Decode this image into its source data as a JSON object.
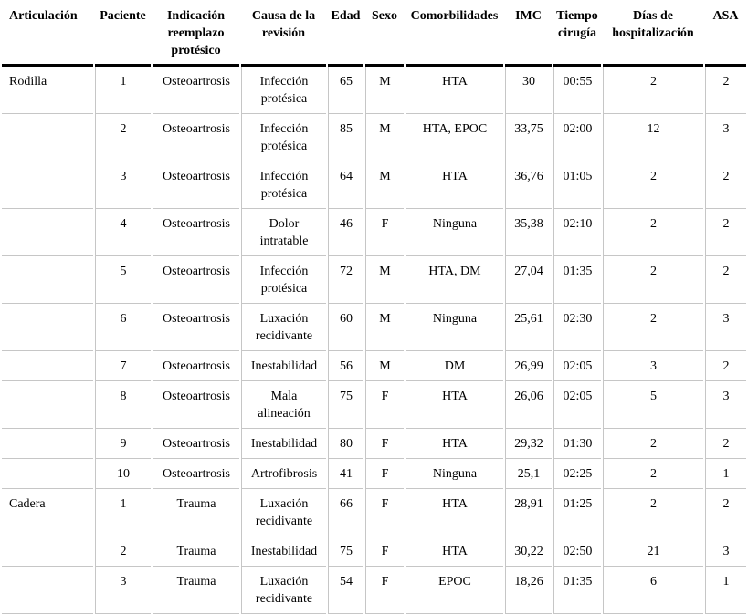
{
  "table": {
    "columns": [
      {
        "key": "articulacion",
        "label": "Articulación"
      },
      {
        "key": "paciente",
        "label": "Paciente"
      },
      {
        "key": "indicacion",
        "label": "Indicación reemplazo protésico"
      },
      {
        "key": "causa",
        "label": "Causa de la revisión"
      },
      {
        "key": "edad",
        "label": "Edad"
      },
      {
        "key": "sexo",
        "label": "Sexo"
      },
      {
        "key": "comorbilidades",
        "label": "Comorbilidades"
      },
      {
        "key": "imc",
        "label": "IMC"
      },
      {
        "key": "tiempo",
        "label": "Tiempo cirugía"
      },
      {
        "key": "dias",
        "label": "Días de hospitalización"
      },
      {
        "key": "asa",
        "label": "ASA"
      }
    ],
    "rows": [
      [
        "Rodilla",
        "1",
        "Osteoartrosis",
        "Infección protésica",
        "65",
        "M",
        "HTA",
        "30",
        "00:55",
        "2",
        "2"
      ],
      [
        "",
        "2",
        "Osteoartrosis",
        "Infección protésica",
        "85",
        "M",
        "HTA, EPOC",
        "33,75",
        "02:00",
        "12",
        "3"
      ],
      [
        "",
        "3",
        "Osteoartrosis",
        "Infección protésica",
        "64",
        "M",
        "HTA",
        "36,76",
        "01:05",
        "2",
        "2"
      ],
      [
        "",
        "4",
        "Osteoartrosis",
        "Dolor intratable",
        "46",
        "F",
        "Ninguna",
        "35,38",
        "02:10",
        "2",
        "2"
      ],
      [
        "",
        "5",
        "Osteoartrosis",
        "Infección protésica",
        "72",
        "M",
        "HTA, DM",
        "27,04",
        "01:35",
        "2",
        "2"
      ],
      [
        "",
        "6",
        "Osteoartrosis",
        "Luxación recidivante",
        "60",
        "M",
        "Ninguna",
        "25,61",
        "02:30",
        "2",
        "3"
      ],
      [
        "",
        "7",
        "Osteoartrosis",
        "Inestabilidad",
        "56",
        "M",
        "DM",
        "26,99",
        "02:05",
        "3",
        "2"
      ],
      [
        "",
        "8",
        "Osteoartrosis",
        "Mala alineación",
        "75",
        "F",
        "HTA",
        "26,06",
        "02:05",
        "5",
        "3"
      ],
      [
        "",
        "9",
        "Osteoartrosis",
        "Inestabilidad",
        "80",
        "F",
        "HTA",
        "29,32",
        "01:30",
        "2",
        "2"
      ],
      [
        "",
        "10",
        "Osteoartrosis",
        "Artrofibrosis",
        "41",
        "F",
        "Ninguna",
        "25,1",
        "02:25",
        "2",
        "1"
      ],
      [
        "Cadera",
        "1",
        "Trauma",
        "Luxación recidivante",
        "66",
        "F",
        "HTA",
        "28,91",
        "01:25",
        "2",
        "2"
      ],
      [
        "",
        "2",
        "Trauma",
        "Inestabilidad",
        "75",
        "F",
        "HTA",
        "30,22",
        "02:50",
        "21",
        "3"
      ],
      [
        "",
        "3",
        "Trauma",
        "Luxación recidivante",
        "54",
        "F",
        "EPOC",
        "18,26",
        "01:35",
        "6",
        "1"
      ]
    ]
  },
  "colors": {
    "text": "#000000",
    "header_rule": "#000000",
    "row_rule": "#c6c6c6",
    "background": "#ffffff"
  }
}
